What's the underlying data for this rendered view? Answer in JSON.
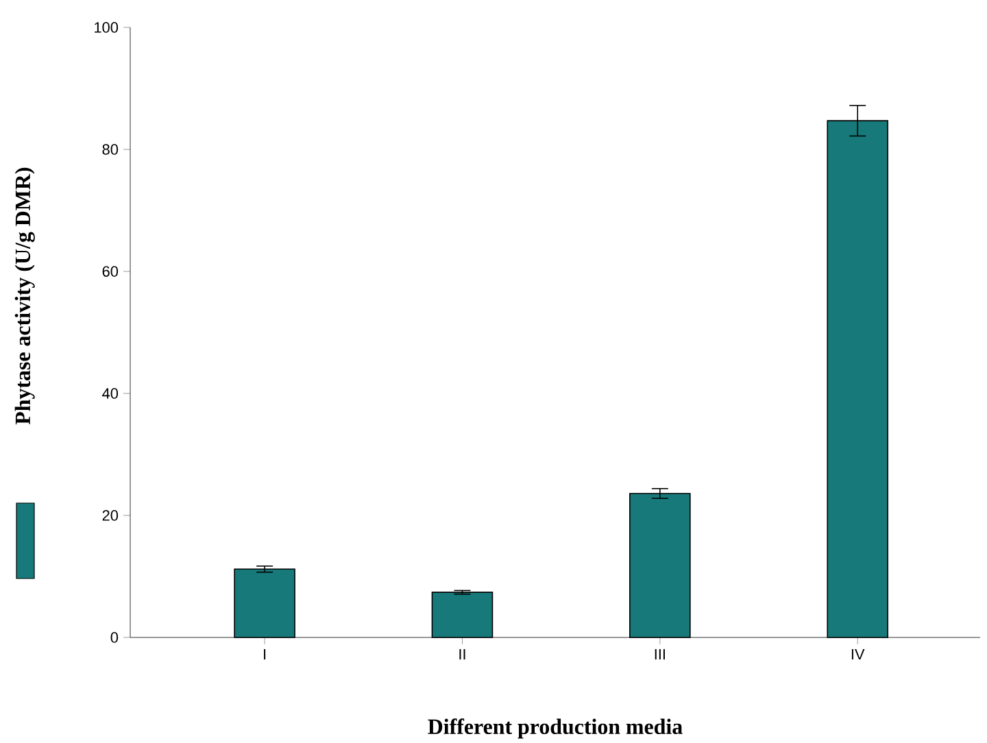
{
  "chart_data": {
    "type": "bar",
    "categories": [
      "I",
      "II",
      "III",
      "IV"
    ],
    "values": [
      11.2,
      7.4,
      23.6,
      84.7
    ],
    "errors": [
      0.5,
      0.3,
      0.8,
      2.5
    ],
    "color": "#17797a",
    "xlabel": "Different production media",
    "ylabel": "Phytase activity (U/g DMR)",
    "ylim": [
      0,
      100
    ],
    "yticks": [
      0,
      20,
      40,
      60,
      80,
      100
    ],
    "grid": false
  }
}
